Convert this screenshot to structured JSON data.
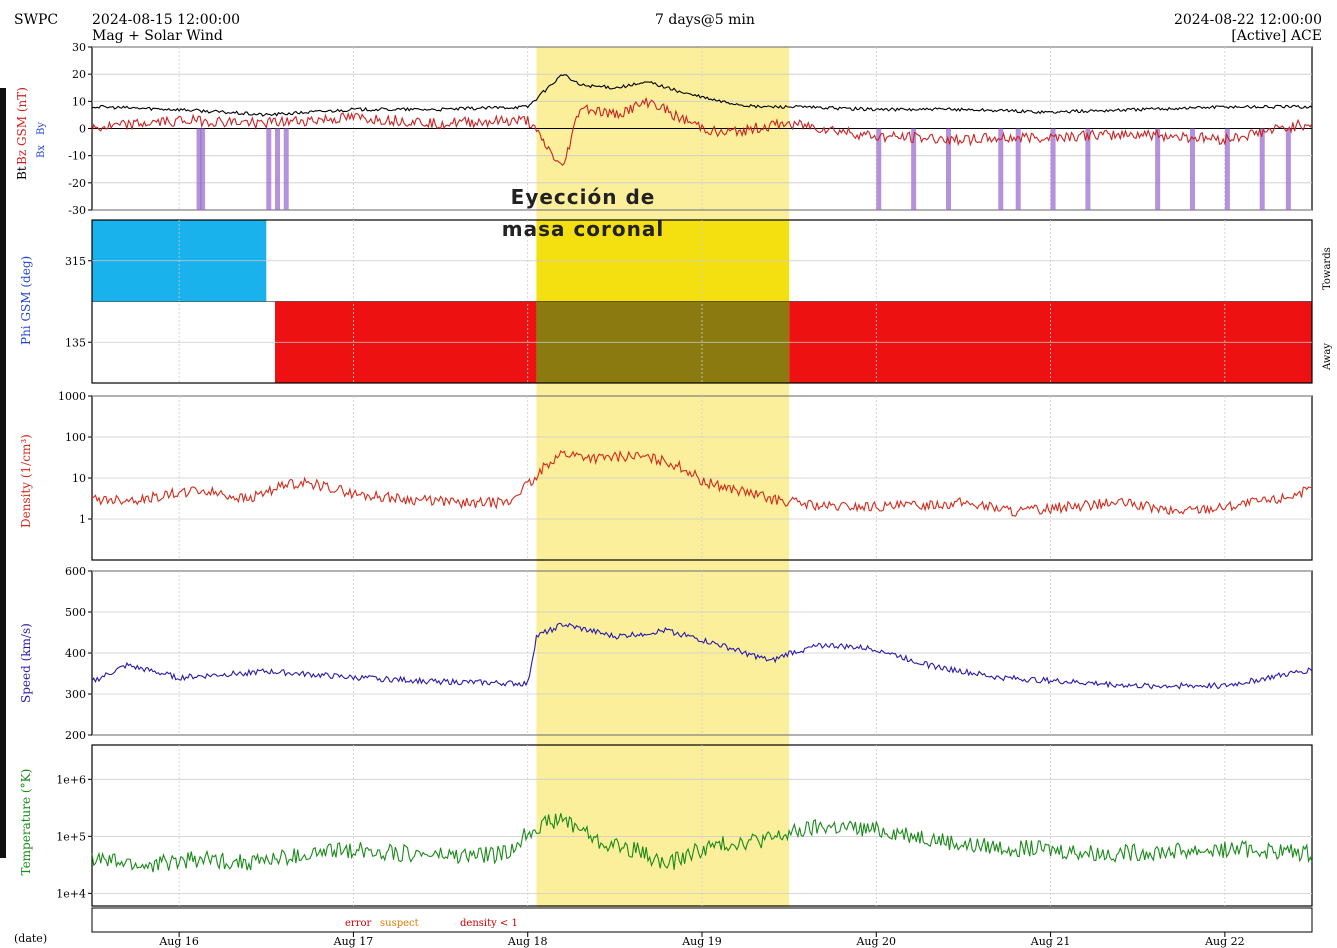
{
  "header": {
    "source": "SWPC",
    "start_time": "2024-08-15 12:00:00",
    "subtitle": "Mag + Solar Wind",
    "span": "7 days@5 min",
    "end_time": "2024-08-22 12:00:00",
    "instrument": "[Active] ACE"
  },
  "annotation": {
    "line1": "Eyección de",
    "line2": "masa coronal",
    "highlight_color": "#fbef9c",
    "highlight_start": "2024-08-17T12:00",
    "highlight_end": "2024-08-19T00:00"
  },
  "x_axis": {
    "date_label": "(date)",
    "ticks": [
      "Aug 16",
      "Aug 17",
      "Aug 18",
      "Aug 19",
      "Aug 20",
      "Aug 21",
      "Aug 22"
    ],
    "tick_days": [
      0.5,
      1.5,
      2.5,
      3.5,
      4.5,
      5.5,
      6.5
    ]
  },
  "legend": {
    "error": "error",
    "suspect": "suspect",
    "density_lt1": "density < 1",
    "error_color": "#cc0000",
    "suspect_color": "#e07a00"
  },
  "chart_data": [
    {
      "type": "line",
      "panel": "magnetic_field",
      "ylabel_bt": "Bt",
      "ylabel_bz": "Bz GSM (nT)",
      "legend_bx": "Bx",
      "legend_by": "By",
      "ylim": [
        -30,
        30
      ],
      "yticks": [
        "30",
        "20",
        "10",
        "0",
        "-10",
        "-20",
        "-30"
      ],
      "ytick_values": [
        30,
        20,
        10,
        0,
        -10,
        -20,
        -30
      ],
      "series": [
        {
          "name": "Bt",
          "color": "#000000",
          "x": [
            0,
            0.5,
            1,
            1.5,
            2,
            2.5,
            2.7,
            2.8,
            3,
            3.2,
            3.4,
            3.6,
            3.8,
            4,
            4.5,
            5,
            5.5,
            6,
            6.5,
            7
          ],
          "values": [
            8,
            7,
            5,
            7,
            7,
            8,
            20,
            16,
            15,
            17,
            13,
            10,
            8,
            8,
            7,
            7,
            6,
            7,
            8,
            8
          ]
        },
        {
          "name": "Bz GSM",
          "color": "#cc2222",
          "x": [
            0,
            0.5,
            1,
            1.5,
            2,
            2.5,
            2.7,
            2.8,
            3,
            3.2,
            3.4,
            3.6,
            3.8,
            4,
            4.5,
            5,
            5.5,
            6,
            6.5,
            7
          ],
          "values": [
            0,
            3,
            2,
            4,
            2,
            3,
            -15,
            8,
            5,
            10,
            3,
            -2,
            0,
            2,
            -3,
            -4,
            -3,
            -2,
            -4,
            2
          ]
        }
      ]
    },
    {
      "type": "scatter",
      "panel": "phi",
      "ylabel": "Phi GSM (deg)",
      "side_top": "Towards",
      "side_bottom": "Away",
      "yticks": [
        "315",
        "135"
      ],
      "ytick_values": [
        315,
        135
      ],
      "ylim": [
        45,
        405
      ],
      "colors": {
        "towards": "#1ab2ec",
        "away": "#ee1111"
      }
    },
    {
      "type": "line",
      "panel": "density",
      "ylabel": "Density (1/cm³)",
      "scale": "log",
      "ylim": [
        0.1,
        1000
      ],
      "yticks": [
        "1000",
        "100",
        "10",
        "1"
      ],
      "ytick_values": [
        1000,
        100,
        10,
        1
      ],
      "series": [
        {
          "name": "Density",
          "color": "#d42a1a",
          "x": [
            0,
            0.3,
            0.6,
            0.9,
            1.2,
            1.5,
            1.8,
            2.1,
            2.4,
            2.55,
            2.7,
            2.9,
            3.1,
            3.3,
            3.5,
            3.7,
            3.9,
            4.2,
            4.6,
            5.0,
            5.3,
            5.6,
            5.9,
            6.2,
            6.5,
            6.8,
            7
          ],
          "values": [
            3,
            3,
            5,
            3,
            8,
            4,
            3,
            2.5,
            2.5,
            9,
            40,
            30,
            35,
            25,
            8,
            5,
            3,
            2,
            2,
            2.5,
            1.5,
            2,
            2.5,
            1.5,
            2,
            3,
            5
          ]
        }
      ]
    },
    {
      "type": "line",
      "panel": "speed",
      "ylabel": "Speed (km/s)",
      "ylim": [
        200,
        600
      ],
      "yticks": [
        "600",
        "500",
        "400",
        "300",
        "200"
      ],
      "ytick_values": [
        600,
        500,
        400,
        300,
        200
      ],
      "series": [
        {
          "name": "Speed",
          "color": "#2a1aaa",
          "x": [
            0,
            0.2,
            0.5,
            1,
            1.5,
            2,
            2.5,
            2.55,
            2.7,
            3,
            3.3,
            3.6,
            3.9,
            4,
            4.2,
            4.5,
            4.8,
            5.2,
            5.6,
            6,
            6.5,
            7
          ],
          "values": [
            330,
            370,
            340,
            355,
            340,
            330,
            325,
            440,
            470,
            440,
            455,
            420,
            380,
            400,
            420,
            410,
            370,
            340,
            330,
            320,
            320,
            360
          ]
        }
      ]
    },
    {
      "type": "line",
      "panel": "temperature",
      "ylabel": "Temperature (°K)",
      "scale": "log",
      "ylim": [
        6000,
        4000000
      ],
      "yticks": [
        "1e+6",
        "1e+5",
        "1e+4"
      ],
      "ytick_values": [
        1000000,
        100000,
        10000
      ],
      "series": [
        {
          "name": "Temperature",
          "color": "#1a8a1a",
          "x": [
            0,
            0.3,
            0.6,
            0.9,
            1.2,
            1.5,
            1.8,
            2.1,
            2.4,
            2.55,
            2.7,
            2.9,
            3.1,
            3.3,
            3.5,
            3.7,
            3.9,
            4.2,
            4.6,
            5.0,
            5.4,
            5.8,
            6.2,
            6.6,
            7
          ],
          "values": [
            40000,
            30000,
            40000,
            35000,
            45000,
            60000,
            50000,
            45000,
            50000,
            150000,
            200000,
            80000,
            60000,
            30000,
            60000,
            80000,
            90000,
            150000,
            120000,
            70000,
            60000,
            50000,
            55000,
            60000,
            50000
          ]
        }
      ]
    }
  ]
}
